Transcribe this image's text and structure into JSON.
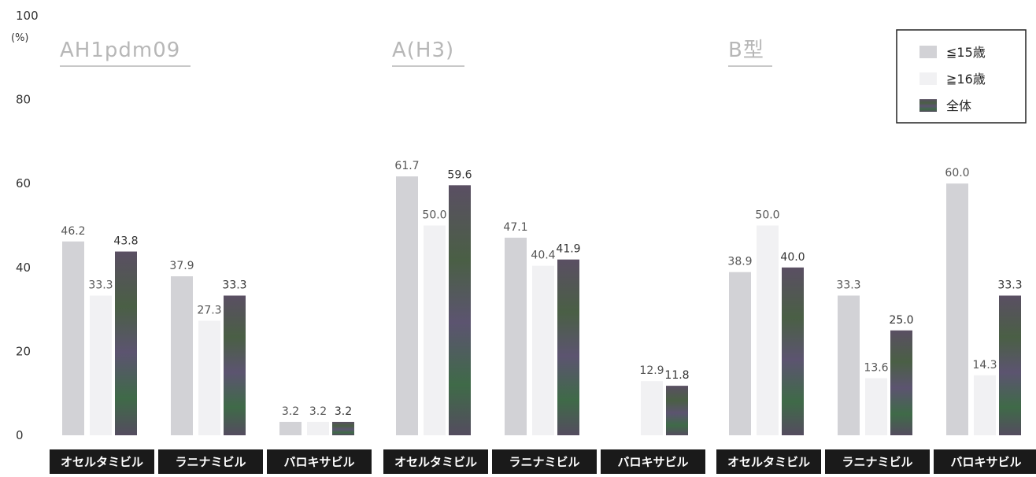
{
  "chart_data": {
    "type": "bar",
    "y_unit": "(%)",
    "ylim": [
      0,
      100
    ],
    "yticks": [
      0,
      20,
      40,
      60,
      80,
      100
    ],
    "grid": false,
    "legend_position": "top-right",
    "series": [
      {
        "name": "≦15歳",
        "color": "#d2d2d6"
      },
      {
        "name": "≧16歳",
        "color": "#f1f1f3"
      },
      {
        "name": "全体",
        "color": "#4d5e4a"
      }
    ],
    "groups": [
      {
        "title": "AH1pdm09",
        "categories": [
          {
            "label": "オセルタミビル",
            "values": [
              46.2,
              33.3,
              43.8
            ]
          },
          {
            "label": "ラニナミビル",
            "values": [
              37.9,
              27.3,
              33.3
            ]
          },
          {
            "label": "バロキサビル",
            "values": [
              3.2,
              3.2,
              3.2
            ]
          }
        ]
      },
      {
        "title": "A(H3)",
        "categories": [
          {
            "label": "オセルタミビル",
            "values": [
              61.7,
              50.0,
              59.6
            ]
          },
          {
            "label": "ラニナミビル",
            "values": [
              47.1,
              40.4,
              41.9
            ]
          },
          {
            "label": "バロキサビル",
            "values": [
              0,
              12.9,
              11.8
            ]
          }
        ]
      },
      {
        "title": "B型",
        "categories": [
          {
            "label": "オセルタミビル",
            "values": [
              38.9,
              50.0,
              40.0
            ]
          },
          {
            "label": "ラニナミビル",
            "values": [
              33.3,
              13.6,
              25.0
            ]
          },
          {
            "label": "バロキサビル",
            "values": [
              60.0,
              14.3,
              33.3
            ]
          }
        ]
      }
    ]
  }
}
